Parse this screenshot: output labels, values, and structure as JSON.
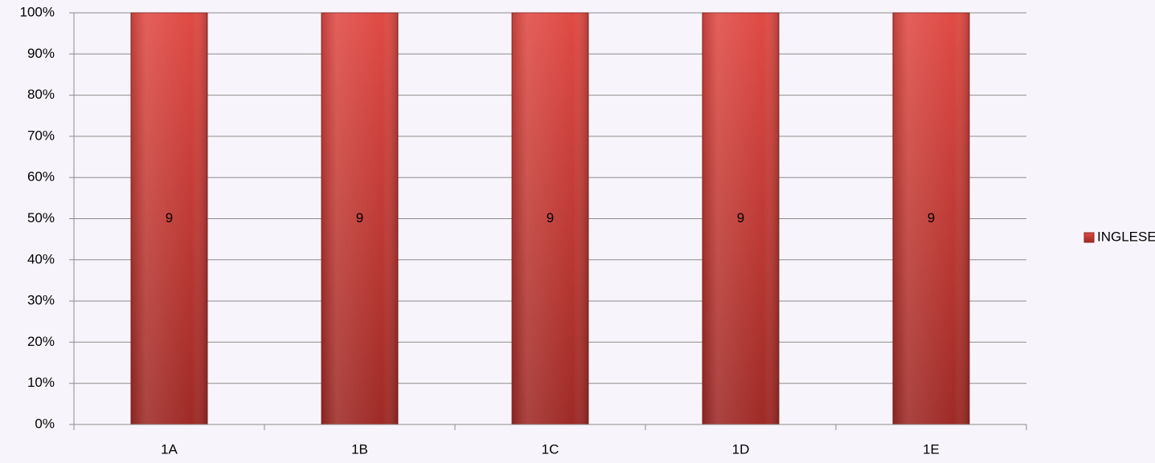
{
  "chart_data": {
    "type": "bar",
    "stacking": "percent",
    "categories": [
      "1A",
      "1B",
      "1C",
      "1D",
      "1E"
    ],
    "series": [
      {
        "name": "INGLESE",
        "color": "#c0392b",
        "values": [
          9,
          9,
          9,
          9,
          9
        ]
      }
    ],
    "ylim": [
      0,
      100
    ],
    "yticks": [
      {
        "value": 0,
        "label": "0%"
      },
      {
        "value": 10,
        "label": "10%"
      },
      {
        "value": 20,
        "label": "20%"
      },
      {
        "value": 30,
        "label": "30%"
      },
      {
        "value": 40,
        "label": "40%"
      },
      {
        "value": 50,
        "label": "50%"
      },
      {
        "value": 60,
        "label": "60%"
      },
      {
        "value": 70,
        "label": "70%"
      },
      {
        "value": 80,
        "label": "80%"
      },
      {
        "value": 90,
        "label": "90%"
      },
      {
        "value": 100,
        "label": "100%"
      }
    ],
    "grid": true,
    "legend": "right"
  }
}
